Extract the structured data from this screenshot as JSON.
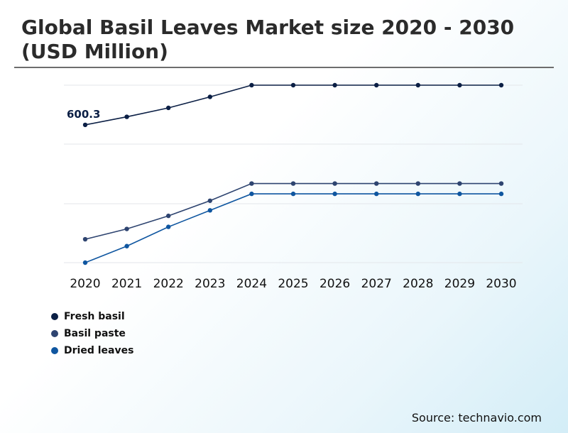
{
  "title": "Global Basil Leaves Market size 2020 - 2030 (USD Million)",
  "source": "Source: technavio.com",
  "chart_data": {
    "type": "line",
    "x": [
      "2020",
      "2021",
      "2022",
      "2023",
      "2024",
      "2025",
      "2026",
      "2027",
      "2028",
      "2029",
      "2030"
    ],
    "data_labels": [
      {
        "series": "Fresh basil",
        "x": "2020",
        "text": "600.3"
      }
    ],
    "series": [
      {
        "name": "Fresh basil",
        "color": "#0b1f45",
        "values": [
          600.3,
          612,
          625,
          641,
          658,
          658,
          658,
          658,
          658,
          658,
          658
        ]
      },
      {
        "name": "Basil paste",
        "color": "#2e4470",
        "values": [
          434,
          449,
          468,
          490,
          515,
          515,
          515,
          515,
          515,
          515,
          515
        ]
      },
      {
        "name": "Dried leaves",
        "color": "#0f56a0",
        "values": [
          400,
          424,
          452,
          476,
          500,
          500,
          500,
          500,
          500,
          500,
          500
        ]
      }
    ],
    "ylim": [
      400,
      658
    ],
    "grid": true,
    "legend_position": "bottom-left"
  }
}
